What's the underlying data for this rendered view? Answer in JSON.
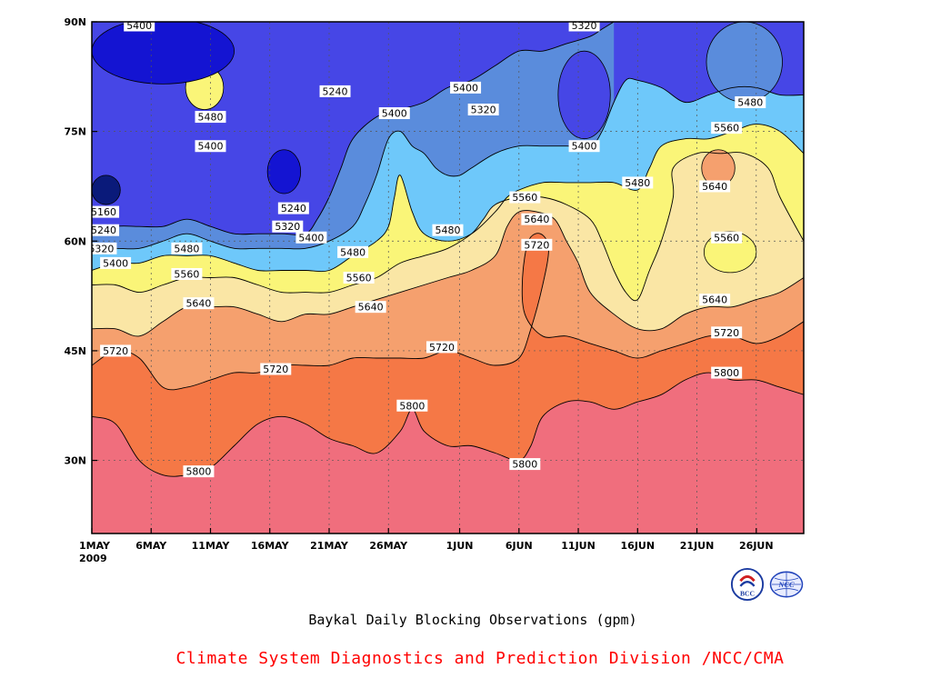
{
  "chart_data": {
    "type": "heatmap",
    "title": "Baykal Daily Blocking Observations (gpm)",
    "credit": "Climate System Diagnostics and Prediction Division /NCC/CMA",
    "x_ticks": [
      "1MAY",
      "6MAY",
      "11MAY",
      "16MAY",
      "21MAY",
      "26MAY",
      "1JUN",
      "6JUN",
      "11JUN",
      "16JUN",
      "21JUN",
      "26JUN"
    ],
    "x_tick_days": [
      0,
      5,
      10,
      15,
      20,
      25,
      31,
      36,
      41,
      46,
      51,
      56
    ],
    "year_label": "2009",
    "y_ticks": [
      "90N",
      "75N",
      "60N",
      "45N",
      "30N"
    ],
    "y_tick_values": [
      90,
      75,
      60,
      45,
      30
    ],
    "xlim": [
      0,
      60
    ],
    "ylim": [
      20,
      90
    ],
    "levels": [
      5160,
      5240,
      5320,
      5400,
      5480,
      5560,
      5640,
      5720,
      5800
    ],
    "level_colors": [
      "#0a1a7a",
      "#1414d2",
      "#4646e6",
      "#5a8cdc",
      "#6ec8fa",
      "#faf578",
      "#fae6a5",
      "#f5a06e",
      "#f57846",
      "#f06e7d"
    ],
    "grid": true,
    "boundaries": [
      {
        "level": 5800,
        "points": [
          [
            0,
            36
          ],
          [
            2,
            35
          ],
          [
            4,
            30
          ],
          [
            6,
            28
          ],
          [
            8,
            28
          ],
          [
            10,
            29
          ],
          [
            12,
            32
          ],
          [
            14,
            35
          ],
          [
            16,
            36
          ],
          [
            18,
            35
          ],
          [
            20,
            33
          ],
          [
            22,
            32
          ],
          [
            24,
            31
          ],
          [
            26,
            34
          ],
          [
            27,
            37
          ],
          [
            28,
            34
          ],
          [
            30,
            32
          ],
          [
            32,
            32
          ],
          [
            34,
            31
          ],
          [
            36,
            30
          ],
          [
            37,
            32
          ],
          [
            38,
            36
          ],
          [
            40,
            38
          ],
          [
            42,
            38
          ],
          [
            44,
            37
          ],
          [
            46,
            38
          ],
          [
            48,
            39
          ],
          [
            50,
            41
          ],
          [
            52,
            42
          ],
          [
            54,
            41
          ],
          [
            56,
            41
          ],
          [
            58,
            40
          ],
          [
            60,
            39
          ]
        ]
      },
      {
        "level": 5720,
        "points": [
          [
            0,
            43
          ],
          [
            2,
            45
          ],
          [
            4,
            44
          ],
          [
            6,
            40
          ],
          [
            8,
            40
          ],
          [
            10,
            41
          ],
          [
            12,
            42
          ],
          [
            14,
            42
          ],
          [
            16,
            43
          ],
          [
            18,
            43
          ],
          [
            20,
            43
          ],
          [
            22,
            44
          ],
          [
            24,
            44
          ],
          [
            26,
            44
          ],
          [
            28,
            44
          ],
          [
            30,
            45
          ],
          [
            32,
            44
          ],
          [
            34,
            43
          ],
          [
            36,
            44
          ],
          [
            37,
            48
          ],
          [
            38,
            54
          ],
          [
            38.5,
            59
          ],
          [
            37.8,
            61
          ],
          [
            36.8,
            60
          ],
          [
            36.3,
            55
          ],
          [
            36.5,
            50
          ],
          [
            38,
            47
          ],
          [
            40,
            47
          ],
          [
            42,
            46
          ],
          [
            44,
            45
          ],
          [
            46,
            44
          ],
          [
            48,
            45
          ],
          [
            50,
            46
          ],
          [
            52,
            47
          ],
          [
            54,
            47
          ],
          [
            56,
            46
          ],
          [
            58,
            47
          ],
          [
            60,
            49
          ]
        ]
      },
      {
        "level": 5640,
        "points": [
          [
            0,
            48
          ],
          [
            2,
            48
          ],
          [
            4,
            47
          ],
          [
            6,
            49
          ],
          [
            8,
            51
          ],
          [
            10,
            51
          ],
          [
            12,
            51
          ],
          [
            14,
            50
          ],
          [
            16,
            49
          ],
          [
            18,
            50
          ],
          [
            20,
            50
          ],
          [
            22,
            51
          ],
          [
            24,
            52
          ],
          [
            26,
            53
          ],
          [
            28,
            54
          ],
          [
            30,
            55
          ],
          [
            32,
            56
          ],
          [
            34,
            58
          ],
          [
            35,
            62
          ],
          [
            36,
            64
          ],
          [
            37.5,
            64
          ],
          [
            39,
            63
          ],
          [
            40,
            60
          ],
          [
            41,
            57
          ],
          [
            42,
            53
          ],
          [
            44,
            50
          ],
          [
            46,
            48
          ],
          [
            48,
            48
          ],
          [
            50,
            50
          ],
          [
            52,
            51
          ],
          [
            54,
            51
          ],
          [
            56,
            52
          ],
          [
            58,
            53
          ],
          [
            60,
            55
          ]
        ]
      },
      {
        "level": 5560,
        "points": [
          [
            0,
            54
          ],
          [
            2,
            54
          ],
          [
            4,
            53
          ],
          [
            6,
            54
          ],
          [
            8,
            55
          ],
          [
            10,
            55
          ],
          [
            12,
            55
          ],
          [
            14,
            54
          ],
          [
            16,
            53
          ],
          [
            18,
            53
          ],
          [
            20,
            53
          ],
          [
            22,
            54
          ],
          [
            24,
            55
          ],
          [
            26,
            57
          ],
          [
            28,
            58
          ],
          [
            30,
            59
          ],
          [
            32,
            61
          ],
          [
            33,
            63
          ],
          [
            34,
            65
          ],
          [
            36,
            66
          ],
          [
            38,
            66
          ],
          [
            40,
            65
          ],
          [
            42,
            63
          ],
          [
            43,
            60
          ],
          [
            44,
            56
          ],
          [
            45,
            53
          ],
          [
            46,
            52
          ],
          [
            47,
            56
          ],
          [
            48,
            60
          ],
          [
            49,
            66
          ],
          [
            49,
            70
          ],
          [
            51,
            72
          ],
          [
            53,
            72
          ],
          [
            55,
            72
          ],
          [
            57,
            70
          ],
          [
            58,
            66
          ],
          [
            60,
            60
          ]
        ]
      },
      {
        "level": 5480,
        "points": [
          [
            0,
            56
          ],
          [
            2,
            57
          ],
          [
            4,
            57
          ],
          [
            6,
            58
          ],
          [
            8,
            58
          ],
          [
            10,
            58
          ],
          [
            12,
            57
          ],
          [
            14,
            56
          ],
          [
            16,
            56
          ],
          [
            18,
            56
          ],
          [
            20,
            56
          ],
          [
            22,
            58
          ],
          [
            24,
            60
          ],
          [
            25,
            62
          ],
          [
            25.5,
            66
          ],
          [
            26,
            69
          ],
          [
            27,
            64
          ],
          [
            28,
            61
          ],
          [
            30,
            60
          ],
          [
            32,
            61
          ],
          [
            34,
            64
          ],
          [
            35,
            66
          ],
          [
            36,
            67
          ],
          [
            38,
            68
          ],
          [
            40,
            68
          ],
          [
            42,
            68
          ],
          [
            44,
            68
          ],
          [
            46,
            67
          ],
          [
            47,
            70
          ],
          [
            48,
            73
          ],
          [
            50,
            74
          ],
          [
            52,
            74
          ],
          [
            54,
            75
          ],
          [
            56,
            76
          ],
          [
            58,
            75
          ],
          [
            60,
            72
          ]
        ]
      },
      {
        "level": 5400,
        "points": [
          [
            0,
            59
          ],
          [
            2,
            59
          ],
          [
            4,
            59
          ],
          [
            6,
            60
          ],
          [
            8,
            61
          ],
          [
            10,
            60
          ],
          [
            12,
            59
          ],
          [
            14,
            59
          ],
          [
            16,
            59
          ],
          [
            18,
            59
          ],
          [
            20,
            60
          ],
          [
            22,
            62
          ],
          [
            23,
            65
          ],
          [
            24,
            69
          ],
          [
            25,
            74
          ],
          [
            26,
            75
          ],
          [
            27,
            73
          ],
          [
            28,
            72
          ],
          [
            29,
            70
          ],
          [
            30,
            69
          ],
          [
            31,
            69
          ],
          [
            32,
            70
          ],
          [
            34,
            72
          ],
          [
            36,
            73
          ],
          [
            38,
            73
          ],
          [
            40,
            73
          ],
          [
            42,
            73
          ],
          [
            43,
            75
          ],
          [
            44,
            79
          ],
          [
            45,
            82
          ],
          [
            46,
            82
          ],
          [
            48,
            81
          ],
          [
            50,
            79
          ],
          [
            52,
            80
          ],
          [
            54,
            81
          ],
          [
            56,
            81
          ],
          [
            58,
            80
          ],
          [
            60,
            80
          ]
        ]
      },
      {
        "level": 5320,
        "points": [
          [
            0,
            61
          ],
          [
            2,
            62
          ],
          [
            4,
            62
          ],
          [
            6,
            62
          ],
          [
            8,
            63
          ],
          [
            10,
            62
          ],
          [
            12,
            61
          ],
          [
            14,
            61
          ],
          [
            16,
            61
          ],
          [
            18,
            61
          ],
          [
            19,
            63
          ],
          [
            20,
            66
          ],
          [
            21,
            70
          ],
          [
            22,
            74
          ],
          [
            24,
            77
          ],
          [
            26,
            78
          ],
          [
            28,
            79
          ],
          [
            30,
            81
          ],
          [
            32,
            82
          ],
          [
            34,
            84
          ],
          [
            36,
            86
          ],
          [
            38,
            86
          ],
          [
            40,
            87
          ],
          [
            42,
            88
          ],
          [
            43,
            89
          ],
          [
            44,
            90
          ]
        ]
      }
    ],
    "closed_contours": [
      {
        "level": 5480,
        "color_inside": "#faf578",
        "center": [
          9.5,
          81
        ],
        "rx": 1.6,
        "ry": 3
      },
      {
        "level": 5240,
        "color_inside": "#1414d2",
        "center": [
          16.2,
          69.5
        ],
        "rx": 1.4,
        "ry": 3
      },
      {
        "level": 5160,
        "color_inside": "#0a1a7a",
        "center": [
          1.2,
          67
        ],
        "rx": 1.2,
        "ry": 2
      },
      {
        "level": 5640,
        "color_inside": "#f5a06e",
        "center": [
          52.8,
          70
        ],
        "rx": 1.4,
        "ry": 2.5
      },
      {
        "level": 5560,
        "color_inside": "#faf578",
        "center": [
          53.8,
          58.5
        ],
        "rx": 2.2,
        "ry": 2.8
      },
      {
        "level": 5320,
        "color_inside": "#4646e6",
        "center": [
          41.5,
          80
        ],
        "rx": 2.2,
        "ry": 6
      },
      {
        "level": 5400,
        "color_inside": "#5a8cdc",
        "center": [
          55,
          84.5
        ],
        "rx": 3.2,
        "ry": 5.5
      },
      {
        "level": 5240,
        "color_inside": "#1414d2",
        "center": [
          6,
          86
        ],
        "rx": 6,
        "ry": 4.5
      }
    ],
    "contour_labels": [
      {
        "text": "5800",
        "x": 9,
        "y": 28.5
      },
      {
        "text": "5800",
        "x": 27,
        "y": 37.5
      },
      {
        "text": "5800",
        "x": 36.5,
        "y": 29.5
      },
      {
        "text": "5800",
        "x": 53.5,
        "y": 42
      },
      {
        "text": "5720",
        "x": 2,
        "y": 45
      },
      {
        "text": "5720",
        "x": 15.5,
        "y": 42.5
      },
      {
        "text": "5720",
        "x": 29.5,
        "y": 45.5
      },
      {
        "text": "5720",
        "x": 37.5,
        "y": 59.5
      },
      {
        "text": "5720",
        "x": 53.5,
        "y": 47.5
      },
      {
        "text": "5640",
        "x": 9,
        "y": 51.5
      },
      {
        "text": "5640",
        "x": 23.5,
        "y": 51
      },
      {
        "text": "5640",
        "x": 37.5,
        "y": 63
      },
      {
        "text": "5640",
        "x": 52.5,
        "y": 52
      },
      {
        "text": "5640",
        "x": 52.5,
        "y": 67.5
      },
      {
        "text": "5560",
        "x": 8,
        "y": 55.5
      },
      {
        "text": "5560",
        "x": 22.5,
        "y": 55
      },
      {
        "text": "5560",
        "x": 36.5,
        "y": 66
      },
      {
        "text": "5560",
        "x": 53.5,
        "y": 60.5
      },
      {
        "text": "5560",
        "x": 53.5,
        "y": 75.5
      },
      {
        "text": "5480",
        "x": 8,
        "y": 59
      },
      {
        "text": "5480",
        "x": 22,
        "y": 58.5
      },
      {
        "text": "5480",
        "x": 30,
        "y": 61.5
      },
      {
        "text": "5480",
        "x": 10,
        "y": 77
      },
      {
        "text": "5480",
        "x": 46,
        "y": 68
      },
      {
        "text": "5480",
        "x": 55.5,
        "y": 79
      },
      {
        "text": "5400",
        "x": 2,
        "y": 57
      },
      {
        "text": "5400",
        "x": 18.5,
        "y": 60.5
      },
      {
        "text": "5400",
        "x": 10,
        "y": 73
      },
      {
        "text": "5400",
        "x": 25.5,
        "y": 77.5
      },
      {
        "text": "5400",
        "x": 31.5,
        "y": 81
      },
      {
        "text": "5400",
        "x": 41.5,
        "y": 73
      },
      {
        "text": "5400",
        "x": 4,
        "y": 89.5
      },
      {
        "text": "5320",
        "x": 0.8,
        "y": 59
      },
      {
        "text": "5320",
        "x": 16.5,
        "y": 62
      },
      {
        "text": "5320",
        "x": 33,
        "y": 78
      },
      {
        "text": "5320",
        "x": 41.5,
        "y": 89.5
      },
      {
        "text": "5240",
        "x": 1,
        "y": 61.5
      },
      {
        "text": "5240",
        "x": 17,
        "y": 64.5
      },
      {
        "text": "5240",
        "x": 20.5,
        "y": 80.5
      },
      {
        "text": "5160",
        "x": 1,
        "y": 64
      }
    ]
  },
  "logos": {
    "left": {
      "name": "bcc-logo",
      "color": "#1a3aa0"
    },
    "right": {
      "name": "ncc-logo",
      "color": "#2244bb"
    }
  }
}
